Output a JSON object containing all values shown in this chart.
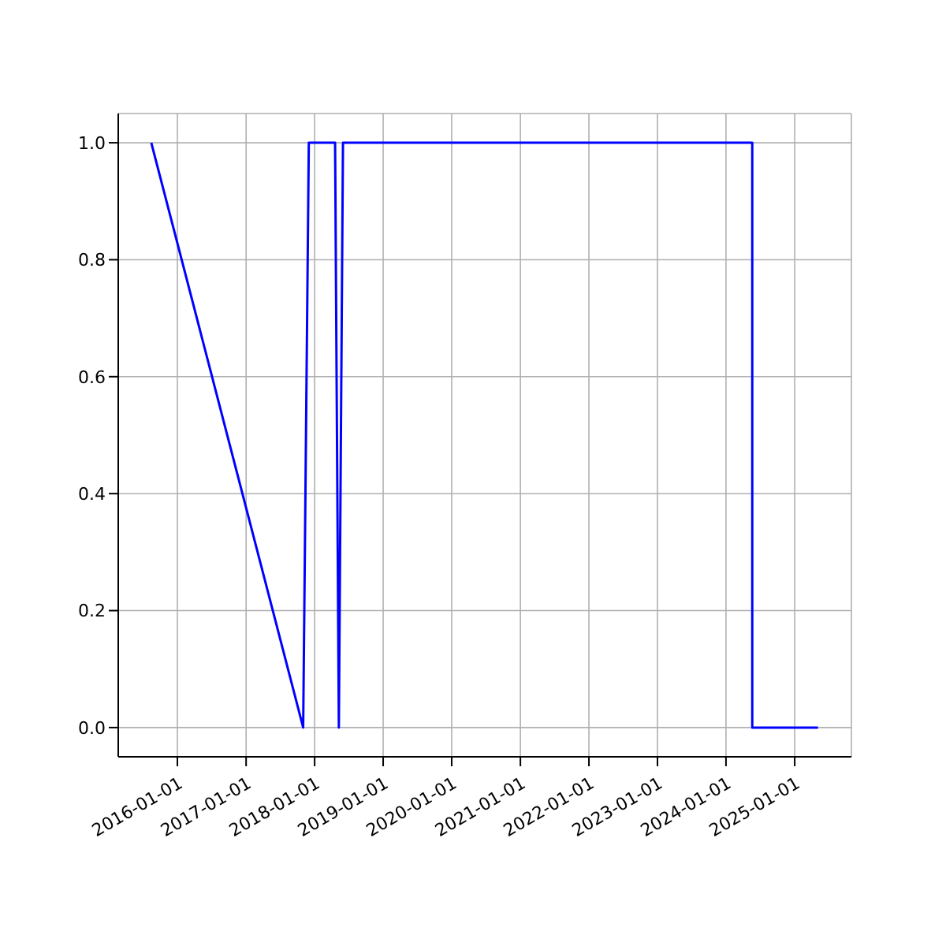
{
  "chart_data": {
    "type": "line",
    "x": [
      "2015-08-15",
      "2017-11-01",
      "2017-12-01",
      "2018-04-20",
      "2018-05-10",
      "2018-06-01",
      "2024-05-20",
      "2024-05-20",
      "2025-05-05"
    ],
    "series": [
      {
        "color": "#0000ff",
        "values": [
          1,
          0,
          1,
          1,
          0,
          1,
          1,
          0,
          0
        ]
      }
    ],
    "xlim": [
      "2015-02-20",
      "2025-10-30"
    ],
    "xticks": [
      "2016-01-01",
      "2017-01-01",
      "2018-01-01",
      "2019-01-01",
      "2020-01-01",
      "2021-01-01",
      "2022-01-01",
      "2023-01-01",
      "2024-01-01",
      "2025-01-01"
    ],
    "ylim": [
      -0.05,
      1.05
    ],
    "yticks": [
      {
        "value": 0,
        "label": "0.0"
      },
      {
        "value": 0.2,
        "label": "0.2"
      },
      {
        "value": 0.4,
        "label": "0.4"
      },
      {
        "value": 0.6,
        "label": "0.6"
      },
      {
        "value": 0.8,
        "label": "0.8"
      },
      {
        "value": 1,
        "label": "1.0"
      }
    ],
    "grid": true,
    "marker": "none",
    "line_style": "solid",
    "legend": false
  }
}
